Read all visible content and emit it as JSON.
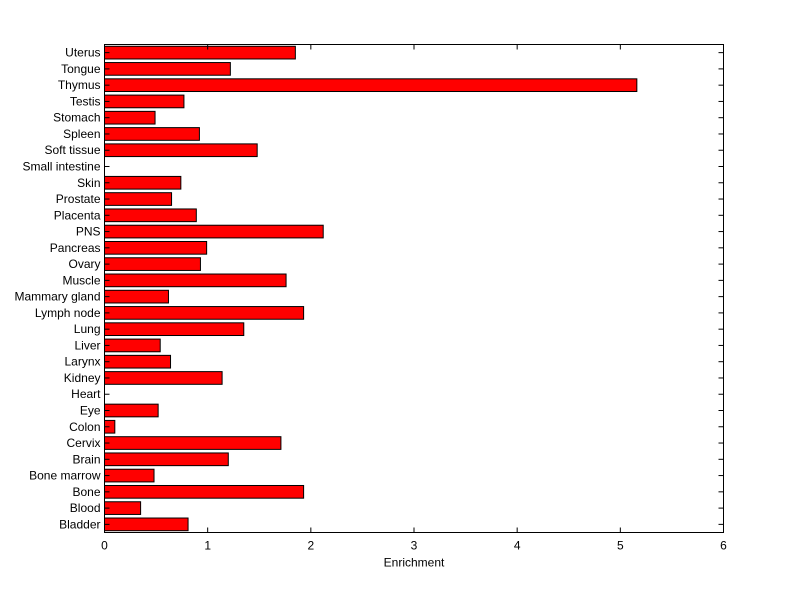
{
  "chart_data": {
    "type": "bar",
    "orientation": "horizontal",
    "title": "",
    "xlabel": "Enrichment",
    "ylabel": "",
    "xlim": [
      0,
      6
    ],
    "xticks": [
      0,
      1,
      2,
      3,
      4,
      5,
      6
    ],
    "grid": false,
    "legend": "none",
    "bar_color": "#ff0000",
    "bar_edge_color": "#000000",
    "categories": [
      "Bladder",
      "Blood",
      "Bone",
      "Bone marrow",
      "Brain",
      "Cervix",
      "Colon",
      "Eye",
      "Heart",
      "Kidney",
      "Larynx",
      "Liver",
      "Lung",
      "Lymph node",
      "Mammary gland",
      "Muscle",
      "Ovary",
      "Pancreas",
      "PNS",
      "Placenta",
      "Prostate",
      "Skin",
      "Small intestine",
      "Soft tissue",
      "Spleen",
      "Stomach",
      "Testis",
      "Thymus",
      "Tongue",
      "Uterus"
    ],
    "values": [
      0.81,
      0.35,
      1.93,
      0.48,
      1.2,
      1.71,
      0.1,
      0.52,
      0.0,
      1.14,
      0.64,
      0.54,
      1.35,
      1.93,
      0.62,
      1.76,
      0.93,
      0.99,
      2.12,
      0.89,
      0.65,
      0.74,
      0.0,
      1.48,
      0.92,
      0.49,
      0.77,
      5.16,
      1.22,
      1.85
    ]
  }
}
